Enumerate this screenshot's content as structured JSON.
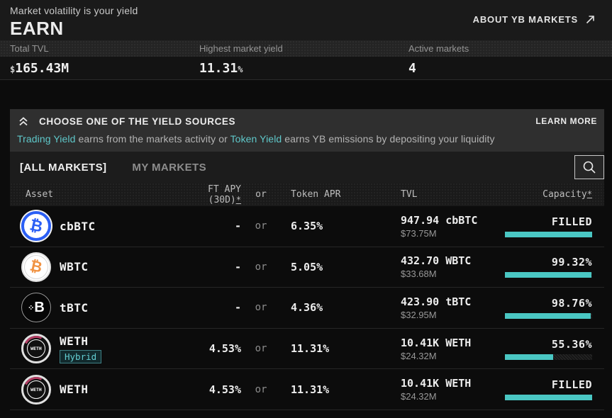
{
  "colors": {
    "accent_teal": "#4ac7c3",
    "link_teal": "#5fc8ca",
    "background": "#0c0c0c",
    "banner_bg": "#2f2f2f"
  },
  "header": {
    "tagline": "Market volatility is your yield",
    "title": "EARN",
    "about_link": "ABOUT YB MARKETS"
  },
  "stats": {
    "tvl": {
      "label": "Total TVL",
      "prefix": "$",
      "value": "165.43M"
    },
    "yield": {
      "label": "Highest market yield",
      "value": "11.31",
      "suffix": "%"
    },
    "active": {
      "label": "Active markets",
      "value": "4"
    }
  },
  "banner": {
    "title": "CHOOSE ONE OF THE YIELD SOURCES",
    "learn_more": "LEARN MORE",
    "sub_link1": "Trading Yield",
    "sub_mid": " earns from the markets activity or ",
    "sub_link2": "Token Yield",
    "sub_end": " earns YB emissions by depositing your liquidity"
  },
  "tabs": {
    "all": "[ALL MARKETS]",
    "mine": "MY MARKETS"
  },
  "table": {
    "asterisk": "*",
    "col_asset": "Asset",
    "col_ft_apy": "FT APY (30D)",
    "col_or": "or",
    "col_token_apr": "Token APR",
    "col_tvl": "TVL",
    "col_capacity": "Capacity"
  },
  "rows": [
    {
      "asset": "cbBTC",
      "icon": "cbbtc-coin-icon",
      "ft_apy": "-",
      "or": "or",
      "token_apr": "6.35%",
      "tvl_amount": "947.94 cbBTC",
      "tvl_usd": "$73.75M",
      "capacity_label": "FILLED",
      "capacity_pct": 100
    },
    {
      "asset": "WBTC",
      "icon": "wbtc-coin-icon",
      "ft_apy": "-",
      "or": "or",
      "token_apr": "5.05%",
      "tvl_amount": "432.70 WBTC",
      "tvl_usd": "$33.68M",
      "capacity_label": "99.32%",
      "capacity_pct": 99.32
    },
    {
      "asset": "tBTC",
      "icon": "tbtc-coin-icon",
      "ft_apy": "-",
      "or": "or",
      "token_apr": "4.36%",
      "tvl_amount": "423.90 tBTC",
      "tvl_usd": "$32.95M",
      "capacity_label": "98.76%",
      "capacity_pct": 98.76
    },
    {
      "asset": "WETH",
      "icon": "weth-coin-icon",
      "badge": "Hybrid",
      "ft_apy": "4.53%",
      "or": "or",
      "token_apr": "11.31%",
      "tvl_amount": "10.41K WETH",
      "tvl_usd": "$24.32M",
      "capacity_label": "55.36%",
      "capacity_pct": 55.36
    },
    {
      "asset": "WETH",
      "icon": "weth-coin-icon",
      "ft_apy": "4.53%",
      "or": "or",
      "token_apr": "11.31%",
      "tvl_amount": "10.41K WETH",
      "tvl_usd": "$24.32M",
      "capacity_label": "FILLED",
      "capacity_pct": 100
    }
  ]
}
